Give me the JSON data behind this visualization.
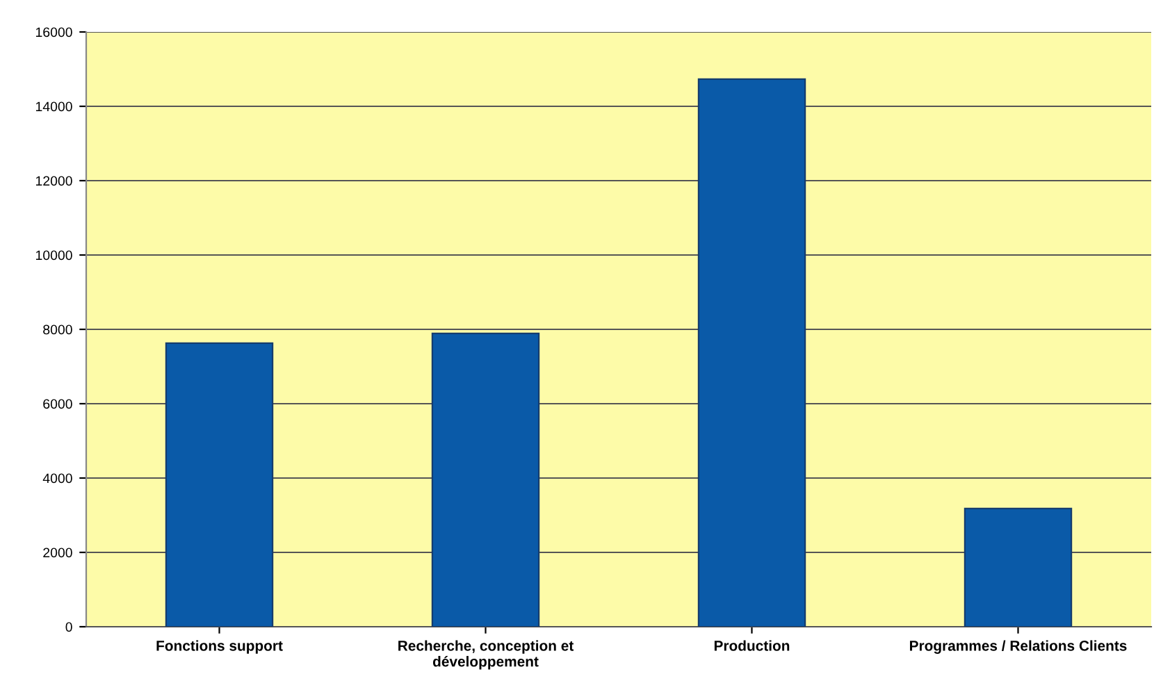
{
  "chart_data": {
    "type": "bar",
    "categories": [
      "Fonctions support",
      "Recherche, conception et\ndéveloppement",
      "Production",
      "Programmes / Relations Clients"
    ],
    "values": [
      7630,
      7890,
      14730,
      3180
    ],
    "color": "#0a5aa8",
    "ylim": [
      0,
      16000
    ],
    "yticks": [
      0,
      2000,
      4000,
      6000,
      8000,
      10000,
      12000,
      14000,
      16000
    ],
    "grid": "y",
    "legend": false
  }
}
